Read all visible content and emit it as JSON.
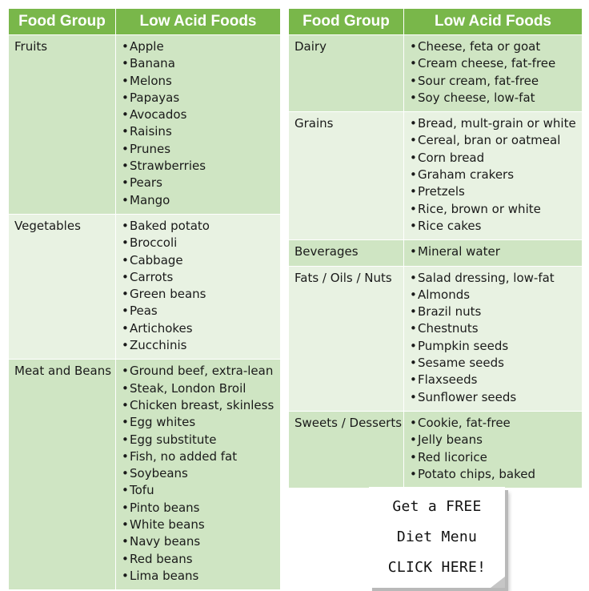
{
  "header": {
    "col1": "Food Group",
    "col2": "Low Acid Foods"
  },
  "bullet": "•",
  "left_groups": [
    {
      "name": "Fruits",
      "items": [
        "Apple",
        "Banana",
        "Melons",
        "Papayas",
        "Avocados",
        "Raisins",
        "Prunes",
        "Strawberries",
        "Pears",
        "Mango"
      ]
    },
    {
      "name": "Vegetables",
      "items": [
        "Baked potato",
        "Broccoli",
        "Cabbage",
        "Carrots",
        "Green beans",
        "Peas",
        "Artichokes",
        "Zucchinis"
      ]
    },
    {
      "name": "Meat and Beans",
      "items": [
        "Ground beef, extra-lean",
        "Steak, London Broil",
        "Chicken breast, skinless",
        "Egg whites",
        "Egg substitute",
        "Fish, no added fat",
        "Soybeans",
        "Tofu",
        "Pinto beans",
        "White beans",
        "Navy beans",
        "Red beans",
        "Lima beans"
      ]
    }
  ],
  "right_groups": [
    {
      "name": "Dairy",
      "items": [
        "Cheese, feta or goat",
        "Cream cheese, fat-free",
        "Sour cream, fat-free",
        "Soy cheese, low-fat"
      ]
    },
    {
      "name": "Grains",
      "items": [
        "Bread, mult-grain or white",
        "Cereal, bran or oatmeal",
        "Corn bread",
        "Graham crakers",
        "Pretzels",
        "Rice, brown or white",
        "Rice cakes"
      ]
    },
    {
      "name": "Beverages",
      "items": [
        "Mineral water"
      ]
    },
    {
      "name": "Fats / Oils / Nuts",
      "items": [
        "Salad dressing, low-fat",
        "Almonds",
        "Brazil nuts",
        "Chestnuts",
        "Pumpkin seeds",
        "Sesame seeds",
        "Flaxseeds",
        "Sunflower seeds"
      ]
    },
    {
      "name": "Sweets / Desserts",
      "items": [
        "Cookie, fat-free",
        "Jelly beans",
        "Red licorice",
        "Potato chips, baked"
      ]
    }
  ],
  "cta": {
    "line1": "Get a FREE",
    "line2": "Diet Menu",
    "line3": "CLICK HERE!"
  },
  "colors": {
    "header": "#79b74a",
    "row_dark": "#cfe5c3",
    "row_light": "#e8f2e2"
  }
}
